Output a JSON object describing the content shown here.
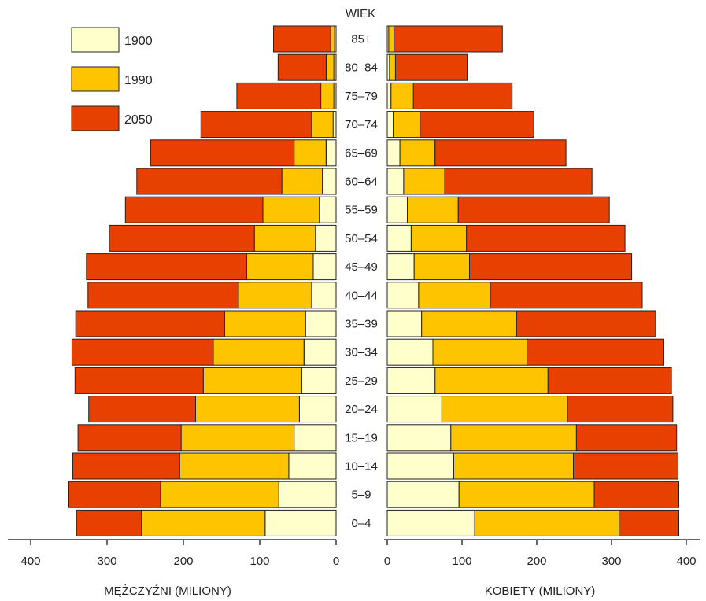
{
  "chart_data": {
    "type": "bar",
    "subtype": "population-pyramid-overlapping",
    "age_axis_title": "WIEK",
    "categories": [
      "85+",
      "80–84",
      "75–79",
      "70–74",
      "65–69",
      "60–64",
      "55–59",
      "50–54",
      "45–49",
      "40–44",
      "35–39",
      "30–34",
      "25–29",
      "20–24",
      "15–19",
      "10–14",
      "5–9",
      "0–4"
    ],
    "left": {
      "xlabel": "MĘŻCZYŹNI (MILIONY)",
      "xlim": [
        400,
        0
      ],
      "ticks": [
        400,
        300,
        200,
        100,
        0
      ],
      "series": [
        {
          "name": "1900",
          "values": [
            2,
            3,
            3,
            4,
            13,
            18,
            22,
            27,
            30,
            32,
            40,
            42,
            45,
            48,
            55,
            62,
            75,
            93
          ]
        },
        {
          "name": "1990",
          "values": [
            5,
            10,
            17,
            28,
            42,
            53,
            74,
            80,
            87,
            96,
            106,
            119,
            129,
            136,
            148,
            143,
            155,
            162
          ]
        },
        {
          "name": "2050",
          "values": [
            75,
            63,
            110,
            145,
            188,
            190,
            180,
            190,
            210,
            197,
            195,
            185,
            168,
            140,
            135,
            140,
            120,
            85
          ]
        }
      ]
    },
    "right": {
      "xlabel": "KOBIETY (MILIONY)",
      "xlim": [
        0,
        400
      ],
      "ticks": [
        0,
        100,
        200,
        300,
        400
      ],
      "series": [
        {
          "name": "1900",
          "values": [
            2,
            3,
            5,
            8,
            17,
            22,
            27,
            32,
            36,
            42,
            46,
            61,
            64,
            73,
            85,
            89,
            96,
            117
          ]
        },
        {
          "name": "1990",
          "values": [
            7,
            8,
            30,
            36,
            47,
            55,
            68,
            74,
            74,
            96,
            127,
            126,
            151,
            168,
            168,
            160,
            181,
            193
          ]
        },
        {
          "name": "2050",
          "values": [
            145,
            96,
            132,
            152,
            175,
            197,
            202,
            212,
            217,
            203,
            186,
            183,
            165,
            141,
            134,
            140,
            113,
            80
          ]
        }
      ]
    },
    "legend": {
      "placement": "top-left",
      "entries": [
        {
          "label": "1900",
          "color": "#FFFFCC"
        },
        {
          "label": "1990",
          "color": "#FFC400"
        },
        {
          "label": "2050",
          "color": "#E84000"
        }
      ]
    },
    "grid": false
  }
}
